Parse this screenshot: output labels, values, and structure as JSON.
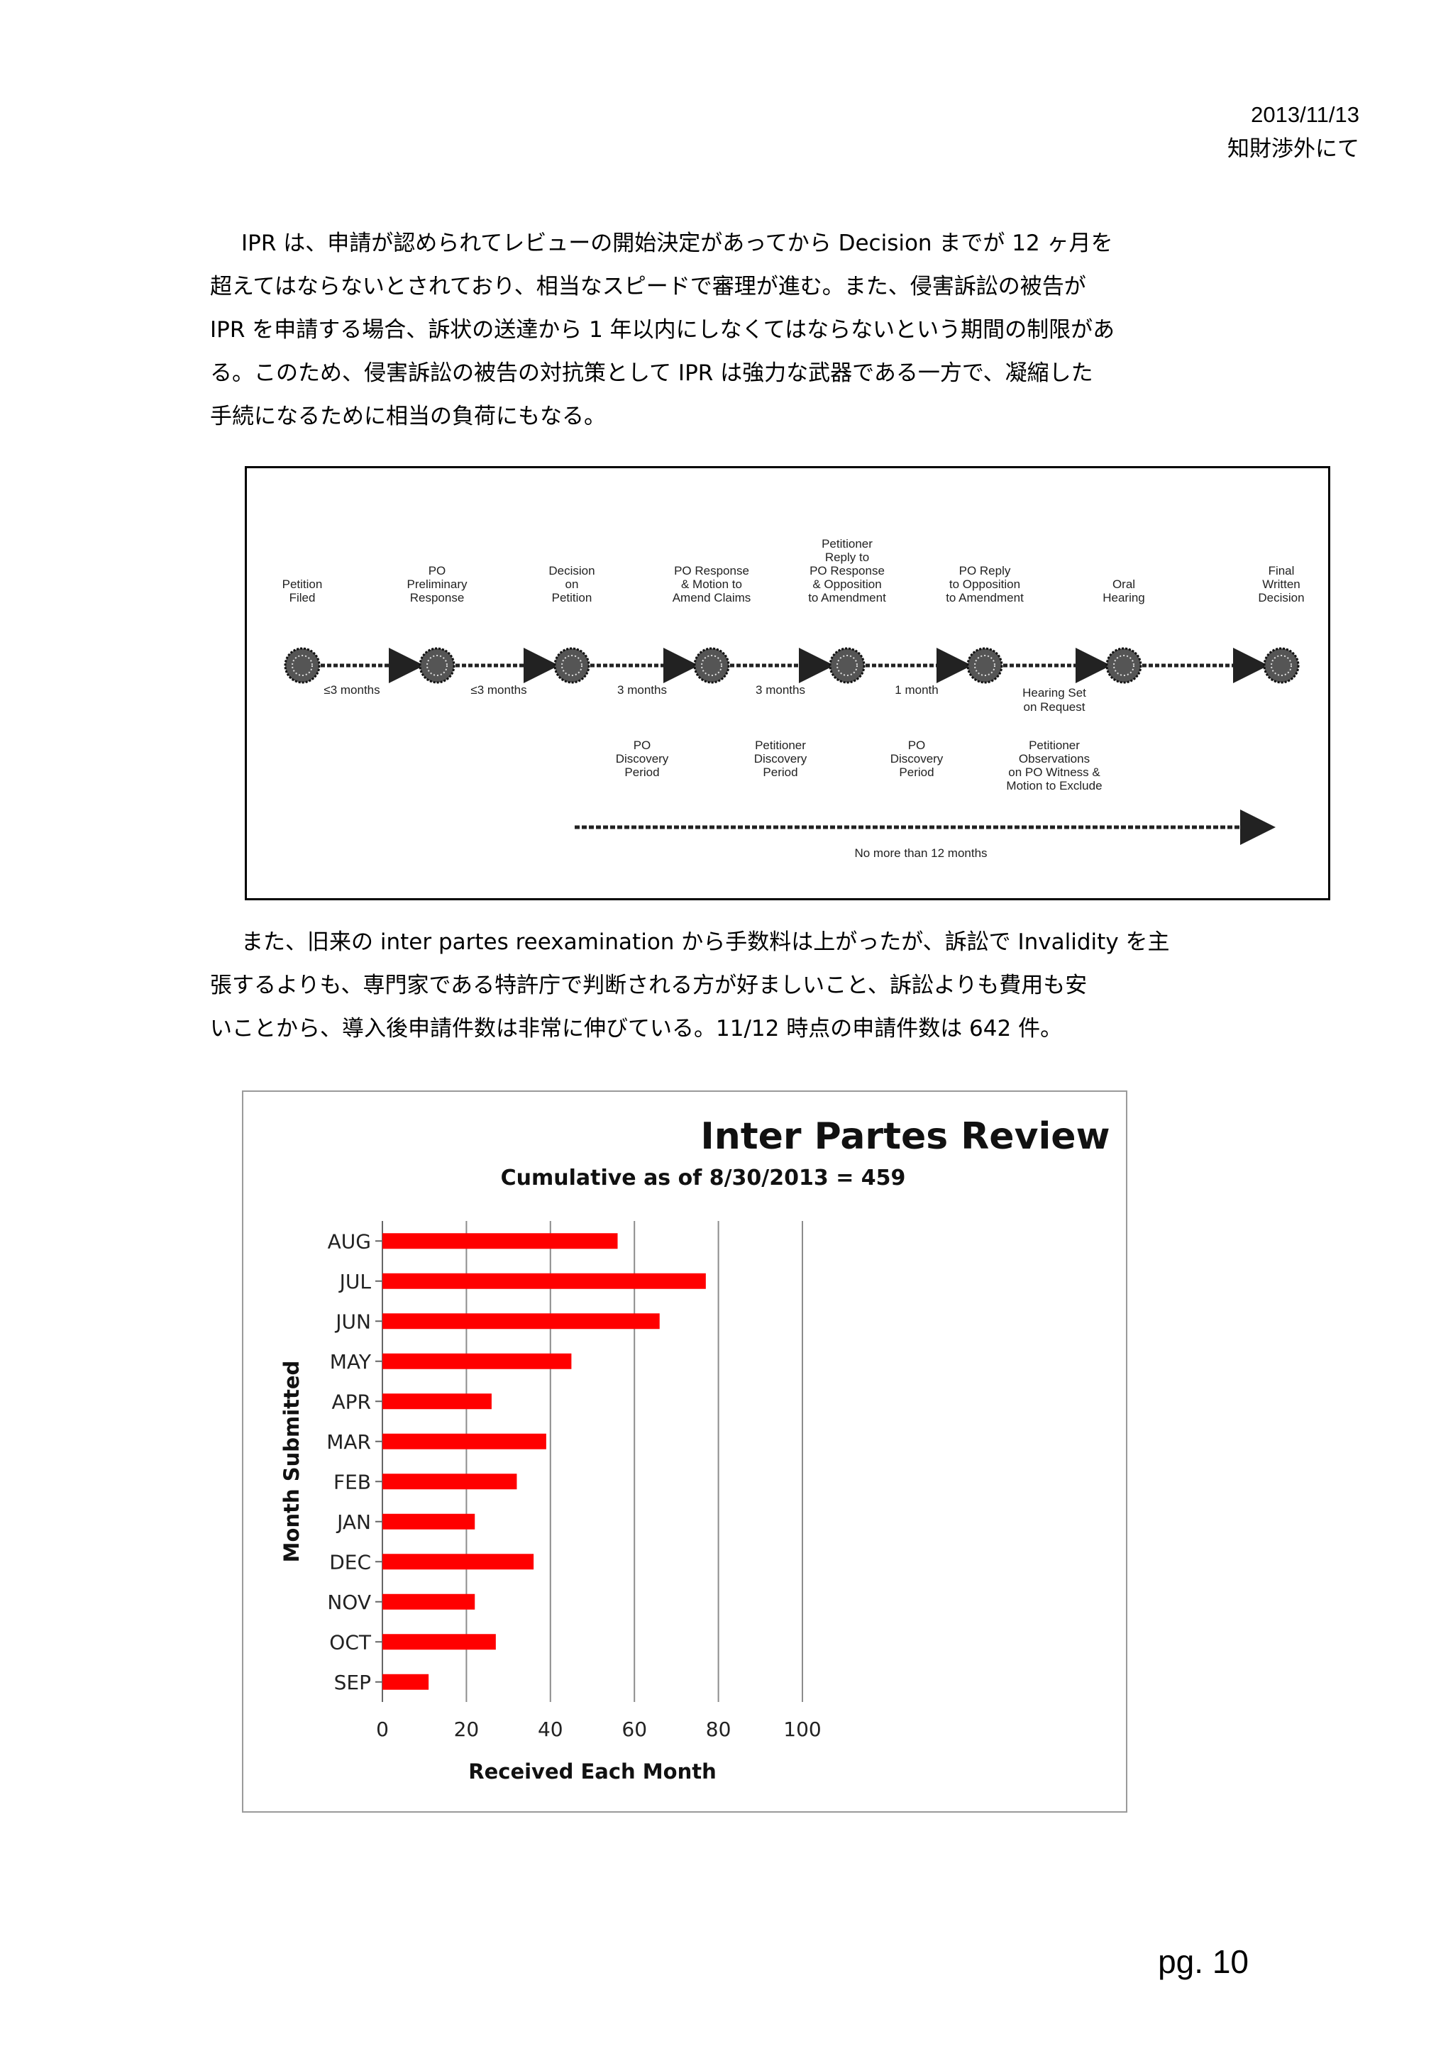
{
  "header": {
    "date": "2013/11/13",
    "subtitle": "知財渉外にて"
  },
  "paragraph1": {
    "lines": [
      "IPR は、申請が認められてレビューの開始決定があってから Decision までが 12 ヶ月を",
      "超えてはならないとされており、相当なスピードで審理が進む。また、侵害訴訟の被告が",
      "IPR を申請する場合、訴状の送達から 1 年以内にしなくてはならないという期間の制限があ",
      "る。このため、侵害訴訟の被告の対抗策として IPR は強力な武器である一方で、凝縮した",
      "手続になるために相当の負荷にもなる。"
    ]
  },
  "timeline": {
    "top_labels": [
      [
        "Petition",
        "Filed"
      ],
      [
        "PO",
        "Preliminary",
        "Response"
      ],
      [
        "Decision",
        "on",
        "Petition"
      ],
      [
        "PO Response",
        "& Motion to",
        "Amend Claims"
      ],
      [
        "Petitioner",
        "Reply to",
        "PO Response",
        "& Opposition",
        "to Amendment"
      ],
      [
        "PO Reply",
        "to Opposition",
        "to Amendment"
      ],
      [
        "Oral",
        "Hearing"
      ],
      [
        "Final",
        "Written",
        "Decision"
      ]
    ],
    "segment_labels": [
      "≤3 months",
      "≤3 months",
      "3 months",
      "3 months",
      "1 month",
      "Hearing Set",
      "on Request"
    ],
    "bottom_labels": [
      [
        "PO",
        "Discovery",
        "Period"
      ],
      [
        "Petitioner",
        "Discovery",
        "Period"
      ],
      [
        "PO",
        "Discovery",
        "Period"
      ],
      [
        "Petitioner",
        "Observations",
        "on PO Witness &",
        "Motion to Exclude"
      ]
    ],
    "span_label": "No more than 12 months"
  },
  "paragraph2": {
    "lines": [
      "また、旧来の inter partes reexamination から手数料は上がったが、訴訟で Invalidity を主",
      "張するよりも、専門家である特許庁で判断される方が好ましいこと、訴訟よりも費用も安",
      "いことから、導入後申請件数は非常に伸びている。11/12 時点の申請件数は 642 件。"
    ]
  },
  "chart_data": {
    "type": "bar",
    "orientation": "horizontal",
    "title": "Inter Partes Review",
    "subtitle": "Cumulative as of 8/30/2013 = 459",
    "xlabel": "Received Each Month",
    "ylabel": "Month Submitted",
    "categories": [
      "AUG",
      "JUL",
      "JUN",
      "MAY",
      "APR",
      "MAR",
      "FEB",
      "JAN",
      "DEC",
      "NOV",
      "OCT",
      "SEP"
    ],
    "values": [
      56,
      77,
      66,
      45,
      26,
      39,
      32,
      22,
      36,
      22,
      27,
      11
    ],
    "xlim": [
      0,
      100
    ],
    "xticks": [
      0,
      20,
      40,
      60,
      80,
      100
    ],
    "grid": true,
    "bar_color": "#ff0000"
  },
  "footer": {
    "page_number": "pg. 10"
  }
}
